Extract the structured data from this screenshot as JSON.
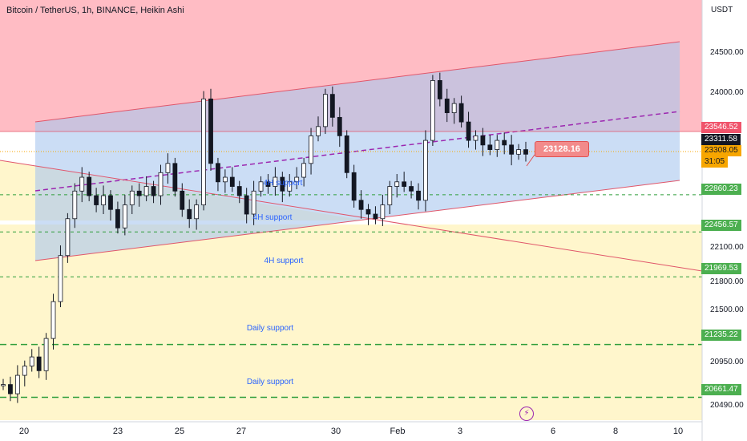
{
  "header": {
    "title": "Bitcoin / TetherUS, 1h, BINANCE, Heikin Ashi"
  },
  "price_axis": {
    "unit": "USDT",
    "ticks": [
      "24500.00",
      "24000.00",
      "22100.00",
      "21800.00",
      "21500.00",
      "20950.00",
      "20490.00"
    ]
  },
  "badges": [
    {
      "label": "23546.52",
      "bg": "#f0536b",
      "fg": "#ffffff",
      "value": 23546.52
    },
    {
      "label": "23311.58",
      "bg": "#131722",
      "fg": "#ffffff",
      "value": 23311.58
    },
    {
      "label": "23308.05",
      "bg": "#f7a600",
      "fg": "#131722",
      "value": 23308.05
    },
    {
      "label": "31:05",
      "bg": "#f7a600",
      "fg": "#131722",
      "value": null
    },
    {
      "label": "22860.23",
      "bg": "#4caf50",
      "fg": "#ffffff",
      "value": 22860.23
    },
    {
      "label": "22456.57",
      "bg": "#4caf50",
      "fg": "#ffffff",
      "value": 22456.57
    },
    {
      "label": "21969.53",
      "bg": "#4caf50",
      "fg": "#ffffff",
      "value": 21969.53
    },
    {
      "label": "21235.22",
      "bg": "#4caf50",
      "fg": "#ffffff",
      "value": 21235.22
    },
    {
      "label": "20661.47",
      "bg": "#4caf50",
      "fg": "#ffffff",
      "value": 20661.47
    }
  ],
  "time_axis": {
    "ticks": [
      "20",
      "23",
      "25",
      "27",
      "30",
      "Feb",
      "3",
      "6",
      "8",
      "10"
    ]
  },
  "annotations": [
    {
      "text": "4H support",
      "price": 22860.23
    },
    {
      "text": "4H support",
      "price": 22456.57
    },
    {
      "text": "4H support",
      "price": 21969.53
    },
    {
      "text": "Daily support",
      "price": 21235.22
    },
    {
      "text": "Daily support",
      "price": 20661.47
    }
  ],
  "callout": {
    "text": "23128.16"
  },
  "colors": {
    "resistance_zone": "#ffbcc4",
    "support_zone": "#fff6cc",
    "channel_fill": "#aecbf2",
    "channel_line": "#e0566a",
    "midline": "#9c27b0",
    "support_line": "#2e9e3a",
    "candle": "#131722"
  },
  "chart_data": {
    "type": "candlestick",
    "symbol": "Bitcoin / TetherUS",
    "interval": "1h",
    "exchange": "BINANCE",
    "style": "Heikin Ashi",
    "y_unit": "USDT",
    "x_ticks": [
      "20",
      "23",
      "25",
      "27",
      "30",
      "Feb",
      "3",
      "6",
      "8",
      "10"
    ],
    "support_levels": [
      22860.23,
      22456.57,
      21969.53,
      21235.22,
      20661.47
    ],
    "resistance_level": 23546.52,
    "last_price": 23308.05,
    "series": [
      {
        "close": [
          20800,
          20700,
          20900,
          21000,
          21100,
          20950,
          21300,
          21700,
          22200,
          22600,
          22900,
          23050,
          22850,
          22750,
          22850,
          22700,
          22500,
          22750,
          22900,
          22850,
          22950,
          22850,
          23100,
          23200,
          22900,
          22700,
          22600,
          22750,
          23900,
          23200,
          23000,
          23050,
          22950,
          22850,
          22650,
          22900,
          23000,
          22950,
          23050,
          22900,
          23000,
          23050,
          23200,
          23500,
          23600,
          23950,
          23700,
          23500,
          23100,
          22800,
          22700,
          22650,
          22600,
          22750,
          22950,
          23000,
          22950,
          22900,
          22800,
          23450,
          24100,
          23900,
          23750,
          23850,
          23650,
          23450,
          23500,
          23400,
          23350,
          23450,
          23400,
          23300,
          23350,
          23300
        ]
      }
    ]
  }
}
